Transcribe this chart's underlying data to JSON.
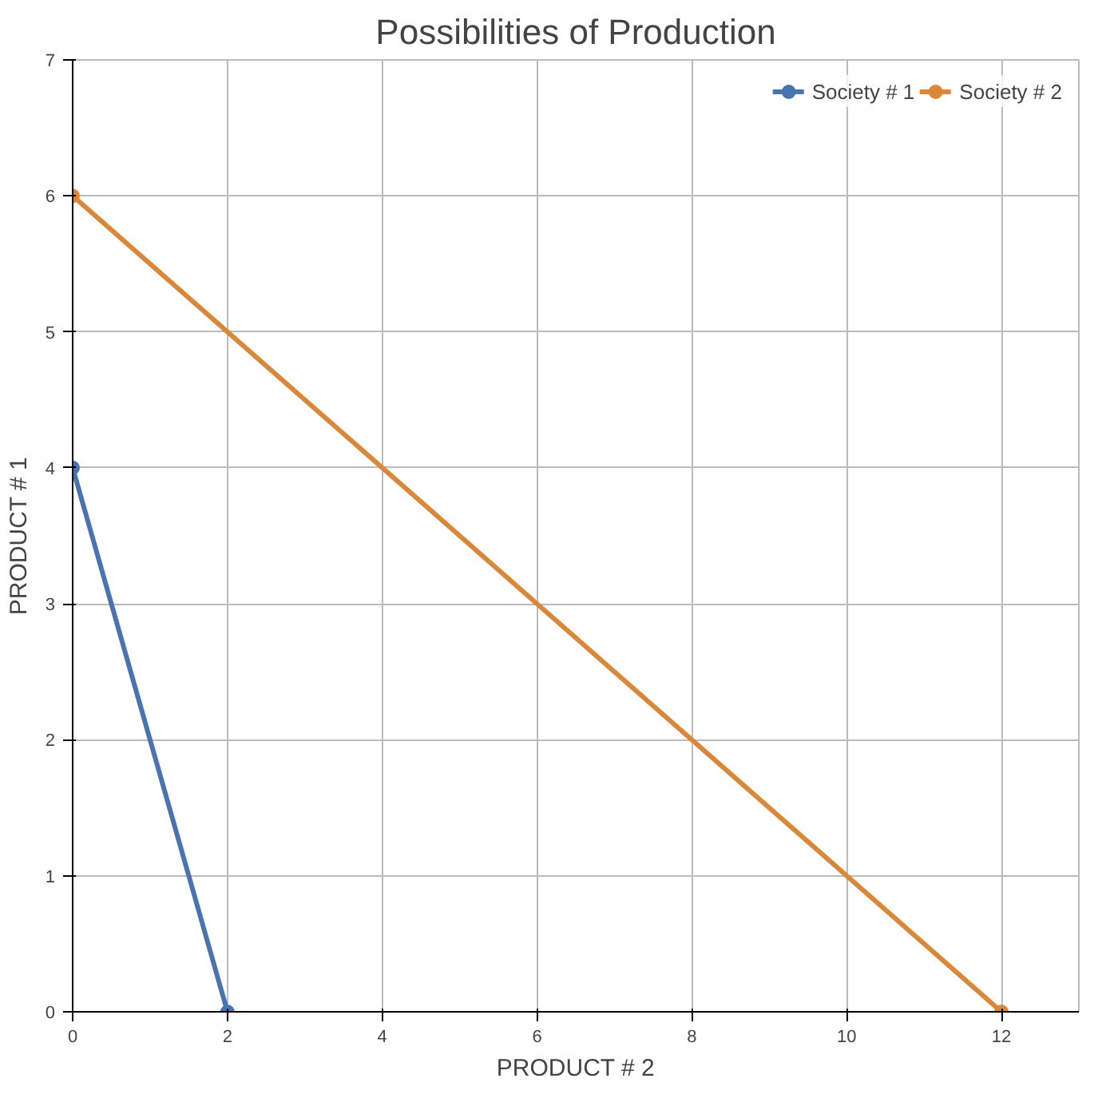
{
  "chart_data": {
    "type": "line",
    "title": "Possibilities of Production",
    "xlabel": "PRODUCT # 2",
    "ylabel": "PRODUCT # 1",
    "series": [
      {
        "name": "Society # 1",
        "color": "#4a74b0",
        "x": [
          0,
          2
        ],
        "values": [
          4,
          0
        ]
      },
      {
        "name": "Society # 2",
        "color": "#d9883a",
        "x": [
          0,
          12
        ],
        "values": [
          6,
          0
        ]
      }
    ],
    "xlim": [
      0,
      13
    ],
    "ylim": [
      0,
      7
    ],
    "xticks": [
      0,
      2,
      4,
      6,
      8,
      10,
      12
    ],
    "yticks": [
      0,
      1,
      2,
      3,
      4,
      5,
      6,
      7
    ],
    "grid": true,
    "legend": "top right",
    "marker": "circle",
    "line_style": "solid"
  }
}
